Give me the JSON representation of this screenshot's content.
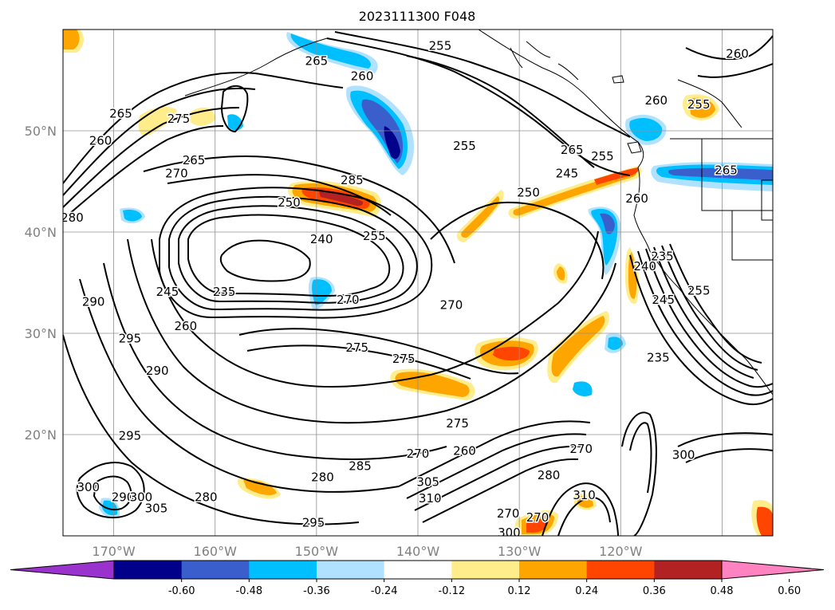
{
  "title": "2023111300 F048",
  "map": {
    "lat_labels": [
      {
        "text": "50°N",
        "lat": 50
      },
      {
        "text": "40°N",
        "lat": 40
      },
      {
        "text": "30°N",
        "lat": 30
      },
      {
        "text": "20°N",
        "lat": 20
      }
    ],
    "lon_labels": [
      {
        "text": "170°W",
        "lon": -170
      },
      {
        "text": "160°W",
        "lon": -160
      },
      {
        "text": "150°W",
        "lon": -150
      },
      {
        "text": "140°W",
        "lon": -140
      },
      {
        "text": "130°W",
        "lon": -130
      },
      {
        "text": "120°W",
        "lon": -120
      }
    ],
    "extent": {
      "lon_min": -175,
      "lon_max": -105,
      "lat_min": 10,
      "lat_max": 60
    },
    "contour_labels": [
      {
        "text": "255",
        "lon": -137.8,
        "lat": 58.4
      },
      {
        "text": "265",
        "lon": -150,
        "lat": 56.9
      },
      {
        "text": "260",
        "lon": -145.5,
        "lat": 55.4
      },
      {
        "text": "260",
        "lon": -108.5,
        "lat": 57.6
      },
      {
        "text": "260",
        "lon": -171.3,
        "lat": 49
      },
      {
        "text": "265",
        "lon": -169.3,
        "lat": 51.7
      },
      {
        "text": "275",
        "lon": -163.6,
        "lat": 51.2
      },
      {
        "text": "265",
        "lon": -162.1,
        "lat": 47.1
      },
      {
        "text": "270",
        "lon": -163.8,
        "lat": 45.8
      },
      {
        "text": "255",
        "lon": -135.4,
        "lat": 48.5
      },
      {
        "text": "260",
        "lon": -116.5,
        "lat": 53
      },
      {
        "text": "255",
        "lon": -112.3,
        "lat": 52.6
      },
      {
        "text": "265",
        "lon": -124.8,
        "lat": 48.1
      },
      {
        "text": "255",
        "lon": -121.8,
        "lat": 47.5
      },
      {
        "text": "265",
        "lon": -109.6,
        "lat": 46.1
      },
      {
        "text": "245",
        "lon": -125.3,
        "lat": 45.8
      },
      {
        "text": "250",
        "lon": -129.1,
        "lat": 43.9
      },
      {
        "text": "260",
        "lon": -118.4,
        "lat": 43.3
      },
      {
        "text": "250",
        "lon": -152.7,
        "lat": 42.9
      },
      {
        "text": "285",
        "lon": -146.5,
        "lat": 45.1
      },
      {
        "text": "240",
        "lon": -149.5,
        "lat": 39.3
      },
      {
        "text": "255",
        "lon": -144.3,
        "lat": 39.6
      },
      {
        "text": "280",
        "lon": -174.1,
        "lat": 41.4
      },
      {
        "text": "235",
        "lon": -159.1,
        "lat": 34.1
      },
      {
        "text": "245",
        "lon": -164.7,
        "lat": 34.1
      },
      {
        "text": "260",
        "lon": -162.9,
        "lat": 30.7
      },
      {
        "text": "270",
        "lon": -146.9,
        "lat": 33.3
      },
      {
        "text": "270",
        "lon": -136.7,
        "lat": 32.8
      },
      {
        "text": "290",
        "lon": -172,
        "lat": 33.1
      },
      {
        "text": "295",
        "lon": -168.4,
        "lat": 29.5
      },
      {
        "text": "275",
        "lon": -146,
        "lat": 28.6
      },
      {
        "text": "275",
        "lon": -141.4,
        "lat": 27.5
      },
      {
        "text": "290",
        "lon": -165.7,
        "lat": 26.3
      },
      {
        "text": "240",
        "lon": -117.6,
        "lat": 36.6
      },
      {
        "text": "245",
        "lon": -115.8,
        "lat": 33.3
      },
      {
        "text": "255",
        "lon": -112.3,
        "lat": 34.2
      },
      {
        "text": "235",
        "lon": -115.9,
        "lat": 37.6
      },
      {
        "text": "235",
        "lon": -116.3,
        "lat": 27.6
      },
      {
        "text": "295",
        "lon": -168.4,
        "lat": 19.9
      },
      {
        "text": "275",
        "lon": -136.1,
        "lat": 21.1
      },
      {
        "text": "270",
        "lon": -140,
        "lat": 18.1
      },
      {
        "text": "260",
        "lon": -135.4,
        "lat": 18.4
      },
      {
        "text": "300",
        "lon": -113.8,
        "lat": 18
      },
      {
        "text": "285",
        "lon": -145.7,
        "lat": 16.9
      },
      {
        "text": "280",
        "lon": -149.4,
        "lat": 15.8
      },
      {
        "text": "305",
        "lon": -139,
        "lat": 15.3
      },
      {
        "text": "310",
        "lon": -138.8,
        "lat": 13.7
      },
      {
        "text": "300",
        "lon": -172.5,
        "lat": 14.8
      },
      {
        "text": "290",
        "lon": -169.1,
        "lat": 13.8
      },
      {
        "text": "300",
        "lon": -167.3,
        "lat": 13.8
      },
      {
        "text": "305",
        "lon": -165.8,
        "lat": 12.7
      },
      {
        "text": "280",
        "lon": -160.9,
        "lat": 13.8
      },
      {
        "text": "295",
        "lon": -150.3,
        "lat": 11.3
      },
      {
        "text": "280",
        "lon": -127.1,
        "lat": 16
      },
      {
        "text": "310",
        "lon": -123.6,
        "lat": 14
      },
      {
        "text": "270",
        "lon": -131.1,
        "lat": 12.2
      },
      {
        "text": "270",
        "lon": -128.2,
        "lat": 11.8
      },
      {
        "text": "300",
        "lon": -131,
        "lat": 10.3
      },
      {
        "text": "270",
        "lon": -123.9,
        "lat": 18.6
      }
    ]
  },
  "colorbar": {
    "ticks": [
      "-0.60",
      "-0.48",
      "-0.36",
      "-0.24",
      "-0.12",
      "0.12",
      "0.24",
      "0.36",
      "0.48",
      "0.60"
    ],
    "colors": [
      "#9a32cd",
      "#00008b",
      "#3a5fcd",
      "#00bfff",
      "#b0e2ff",
      "#ffffff",
      "#ffec8b",
      "#ffa500",
      "#ff4500",
      "#b22222",
      "#ff83c0"
    ]
  }
}
